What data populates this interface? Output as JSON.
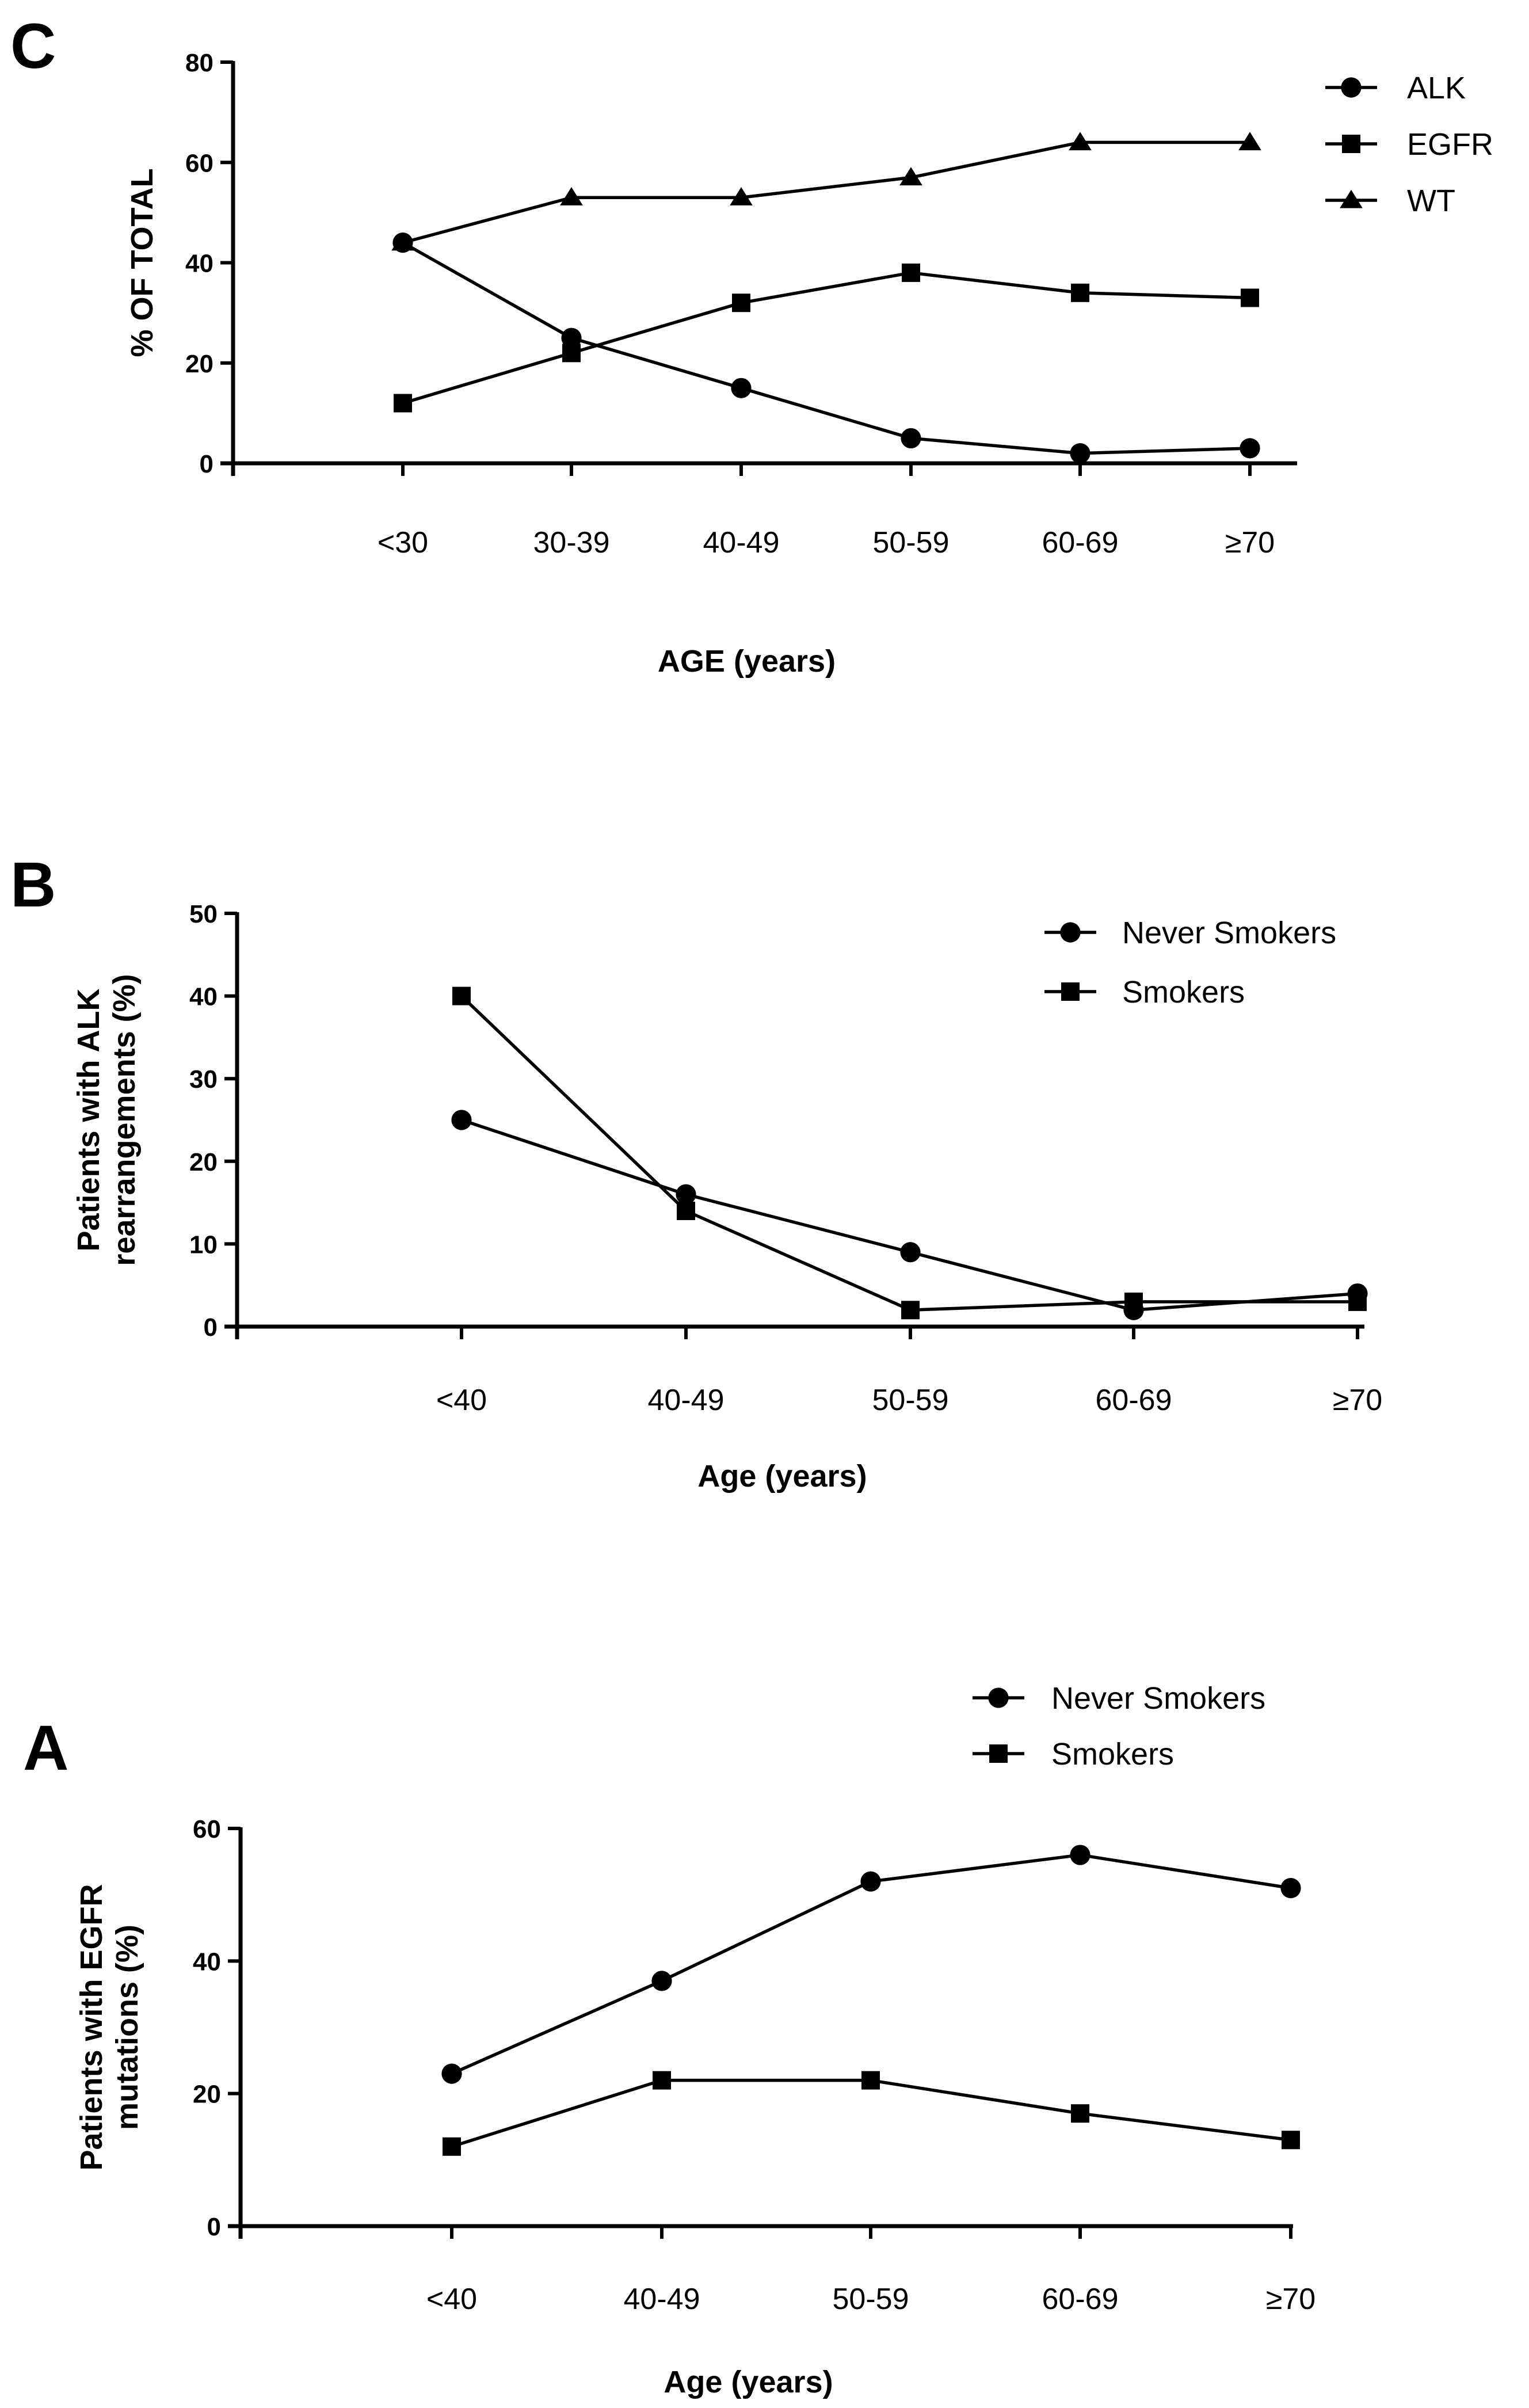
{
  "chart_data": [
    {
      "panel": "C",
      "type": "line",
      "categories": [
        "<30",
        "30-39",
        "40-49",
        "50-59",
        "60-69",
        "≥70"
      ],
      "series": [
        {
          "name": "ALK",
          "marker": "circle",
          "values": [
            44,
            25,
            15,
            5,
            2,
            3
          ]
        },
        {
          "name": "EGFR",
          "marker": "square",
          "values": [
            12,
            22,
            32,
            38,
            34,
            33
          ]
        },
        {
          "name": "WT",
          "marker": "triangle",
          "values": [
            44,
            53,
            53,
            57,
            64,
            64
          ]
        }
      ],
      "yticks": [
        "0",
        "20",
        "40",
        "60",
        "80"
      ],
      "ylim": [
        0,
        80
      ],
      "xlabel": "AGE (years)",
      "ylabel": "% OF TOTAL",
      "legend": "top-right"
    },
    {
      "panel": "B",
      "type": "line",
      "categories": [
        "<40",
        "40-49",
        "50-59",
        "60-69",
        "≥70"
      ],
      "series": [
        {
          "name": "Never Smokers",
          "marker": "circle",
          "values": [
            25,
            16,
            9,
            2,
            4
          ]
        },
        {
          "name": "Smokers",
          "marker": "square",
          "values": [
            40,
            14,
            2,
            3,
            3
          ]
        }
      ],
      "yticks": [
        "0",
        "10",
        "20",
        "30",
        "40",
        "50"
      ],
      "ylim": [
        0,
        50
      ],
      "xlabel": "Age (years)",
      "ylabel_lines": [
        "Patients with ALK",
        "rearrangements (%)"
      ],
      "legend": "top-right"
    },
    {
      "panel": "A",
      "type": "line",
      "categories": [
        "<40",
        "40-49",
        "50-59",
        "60-69",
        "≥70"
      ],
      "series": [
        {
          "name": "Never Smokers",
          "marker": "circle",
          "values": [
            23,
            37,
            52,
            56,
            51
          ]
        },
        {
          "name": "Smokers",
          "marker": "square",
          "values": [
            12,
            22,
            22,
            17,
            13
          ]
        }
      ],
      "yticks": [
        "0",
        "20",
        "40",
        "60"
      ],
      "ylim": [
        0,
        60
      ],
      "xlabel": "Age (years)",
      "ylabel_lines": [
        "Patients with EGFR",
        "mutations (%)"
      ],
      "legend": "top-right"
    }
  ]
}
